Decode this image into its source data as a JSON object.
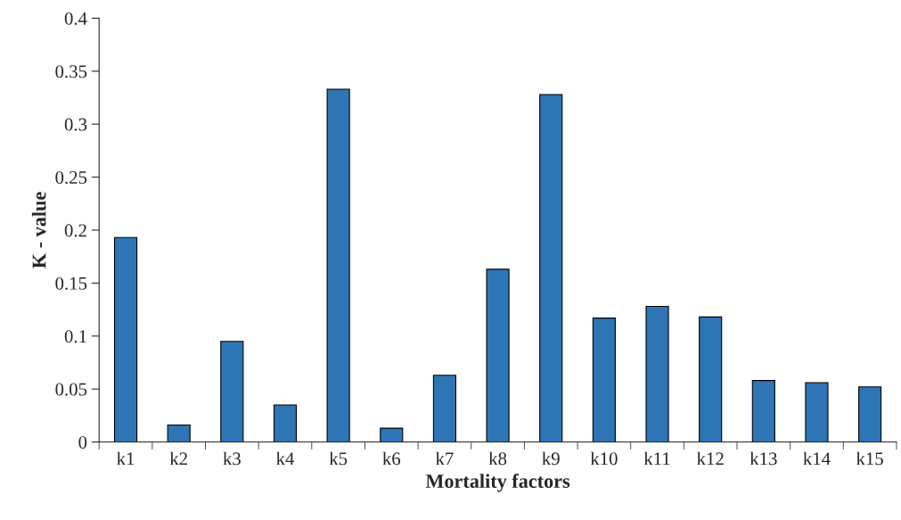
{
  "chart_data": {
    "type": "bar",
    "xlabel": "Mortality factors",
    "ylabel": "K - value",
    "categories": [
      "k1",
      "k2",
      "k3",
      "k4",
      "k5",
      "k6",
      "k7",
      "k8",
      "k9",
      "k10",
      "k11",
      "k12",
      "k13",
      "k14",
      "k15"
    ],
    "values": [
      0.193,
      0.016,
      0.095,
      0.035,
      0.333,
      0.013,
      0.063,
      0.163,
      0.328,
      0.117,
      0.128,
      0.118,
      0.058,
      0.056,
      0.052
    ],
    "color": "#2e75b6",
    "ylim": [
      0,
      0.4
    ],
    "yticks": [
      {
        "value": 0,
        "label": "0"
      },
      0.05,
      0.1,
      0.15,
      0.2,
      0.25,
      0.3,
      0.35,
      0.4
    ],
    "grid": false
  }
}
